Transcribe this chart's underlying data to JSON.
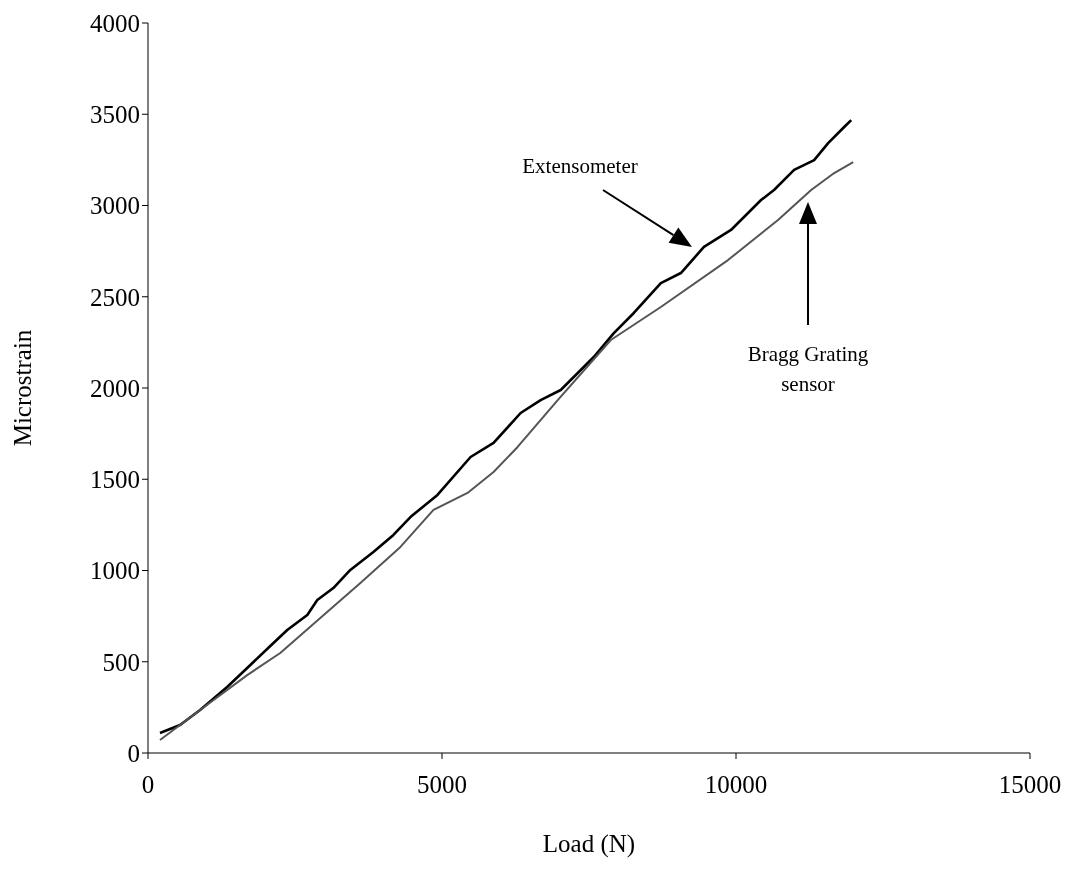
{
  "chart_data": {
    "type": "line",
    "xlabel": "Load (N)",
    "ylabel": "Microstrain",
    "xlim": [
      0,
      15000
    ],
    "xticks": [
      0,
      5000,
      10000,
      15000
    ],
    "ylim": [
      0,
      4000
    ],
    "yticks": [
      0,
      500,
      1000,
      1500,
      2000,
      2500,
      3000,
      3500,
      4000
    ],
    "grid": false,
    "marker": "none",
    "line_style": "solid",
    "series": [
      {
        "color": "#000000",
        "x": [
          204,
          545,
          886,
          1346,
          1687,
          2044,
          2368,
          2709,
          2879,
          3152,
          3441,
          3833,
          4174,
          4463,
          4923,
          5486,
          5877,
          6337,
          6678,
          7019,
          7581,
          7922,
          8262,
          8722,
          9063,
          9455,
          9915,
          10426,
          10647,
          10988,
          11329,
          11567,
          11840,
          11959
        ],
        "values": [
          110,
          153,
          236,
          362,
          466,
          575,
          674,
          756,
          838,
          904,
          1003,
          1101,
          1195,
          1293,
          1414,
          1622,
          1699,
          1863,
          1934,
          1989,
          2170,
          2301,
          2411,
          2575,
          2630,
          2773,
          2866,
          3030,
          3085,
          3195,
          3249,
          3342,
          3430,
          3468
        ]
      },
      {
        "color": "#555555",
        "x": [
          204,
          886,
          1687,
          2249,
          2930,
          3612,
          4293,
          4855,
          5434,
          5877,
          6286,
          6968,
          7871,
          8722,
          9864,
          10715,
          11278,
          11670,
          11993
        ],
        "values": [
          71,
          236,
          427,
          548,
          740,
          932,
          1129,
          1332,
          1425,
          1540,
          1677,
          1934,
          2263,
          2444,
          2701,
          2921,
          3085,
          3178,
          3238
        ]
      }
    ],
    "annotations": [
      "Extensometer",
      "Bragg Grating sensor"
    ]
  }
}
